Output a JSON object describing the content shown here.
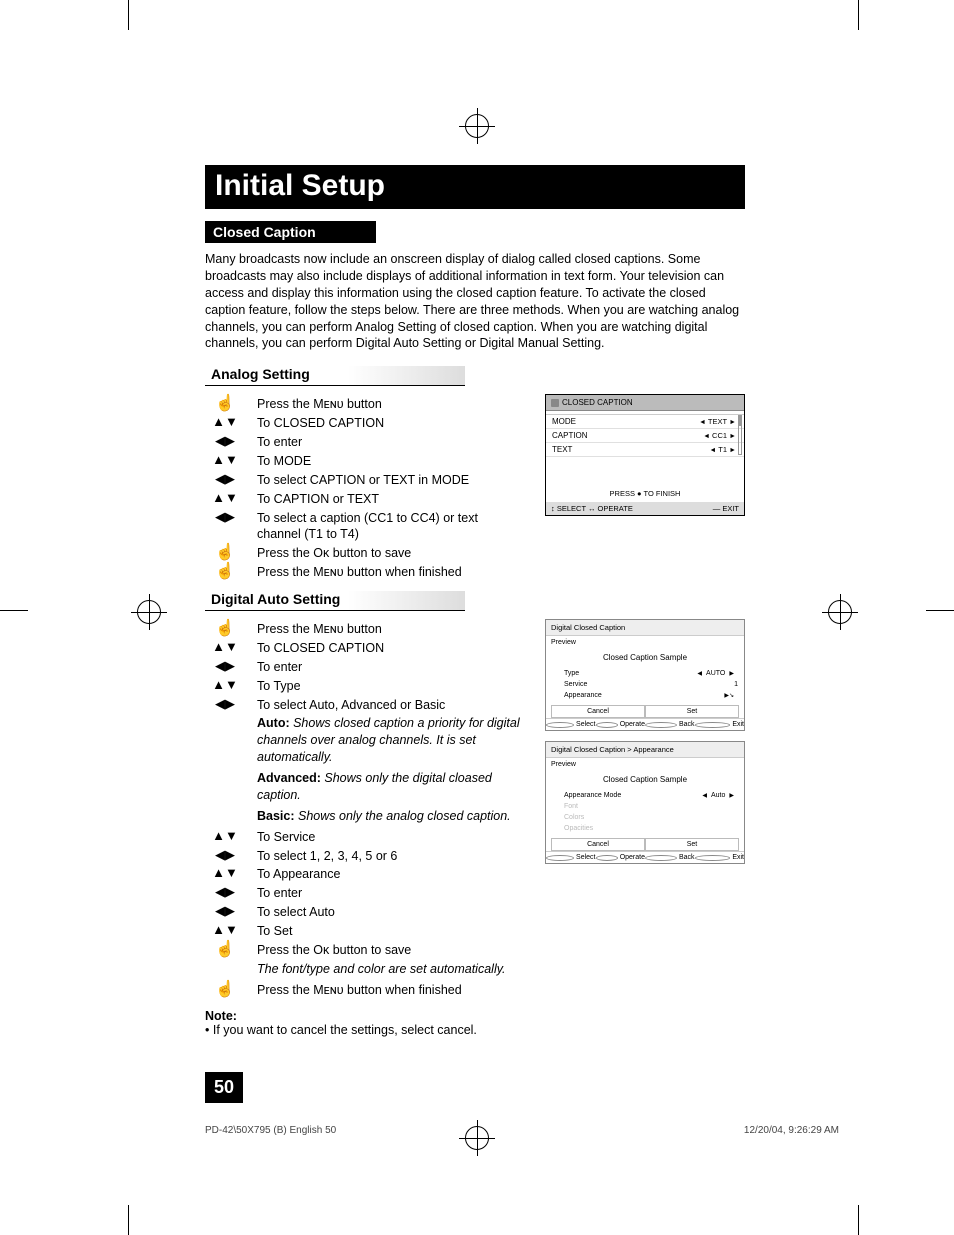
{
  "page_title": "Initial Setup",
  "section1": "Closed Caption",
  "intro": "Many broadcasts now include an onscreen display of dialog called closed captions. Some broadcasts may also include displays of additional information in text form. Your television can access and display this information using the closed caption feature. To activate the closed caption feature, follow the steps below.  There are three methods.  When you are watching analog channels, you can perform Analog Setting of closed caption.  When you are watching digital channels, you can perform Digital Auto Setting or Digital Manual Setting.",
  "analog_heading": "Analog Setting",
  "analog_steps": [
    {
      "icon": "hand",
      "text": "Press the Mᴇɴᴜ button"
    },
    {
      "icon": "ud",
      "text": "To CLOSED CAPTION"
    },
    {
      "icon": "lr",
      "text": "To enter"
    },
    {
      "icon": "ud",
      "text": "To MODE"
    },
    {
      "icon": "lr",
      "text": "To select CAPTION or TEXT in MODE"
    },
    {
      "icon": "ud",
      "text": "To CAPTION or TEXT"
    },
    {
      "icon": "lr",
      "text": "To select a caption (CC1 to CC4) or text channel (T1 to T4)"
    },
    {
      "icon": "hand",
      "text": "Press the Oᴋ button to save"
    },
    {
      "icon": "hand",
      "text": "Press the Mᴇɴᴜ button when finished"
    }
  ],
  "digital_heading": "Digital Auto Setting",
  "digital_steps_a": [
    {
      "icon": "hand",
      "text": "Press the Mᴇɴᴜ button"
    },
    {
      "icon": "ud",
      "text": "To CLOSED CAPTION"
    },
    {
      "icon": "lr",
      "text": "To enter"
    },
    {
      "icon": "ud",
      "text": "To Type"
    },
    {
      "icon": "lr",
      "text": "To select Auto, Advanced or Basic"
    }
  ],
  "digital_desc": [
    {
      "b": "Auto:",
      "t": "  Shows closed caption a priority for digital channels over analog channels.  It is set automatically."
    },
    {
      "b": "Advanced:",
      "t": "  Shows only the digital cloased caption."
    },
    {
      "b": "Basic:",
      "t": "  Shows only the analog closed caption."
    }
  ],
  "digital_steps_b": [
    {
      "icon": "ud",
      "text": "To Service"
    },
    {
      "icon": "lr",
      "text": "To select 1, 2, 3, 4, 5 or 6"
    },
    {
      "icon": "ud",
      "text": "To Appearance"
    },
    {
      "icon": "lr",
      "text": "To enter"
    },
    {
      "icon": "lr",
      "text": "To select Auto"
    },
    {
      "icon": "ud",
      "text": "To Set"
    },
    {
      "icon": "hand",
      "text": "Press the Oᴋ button to save"
    }
  ],
  "digital_tail": "The font/type and color are set automatically.",
  "digital_final": {
    "icon": "hand",
    "text": "Press the Mᴇɴᴜ button when finished"
  },
  "note_label": "Note:",
  "note_text": "If you want to cancel the settings, select cancel.",
  "page_number": "50",
  "footer_left": "PD-42\\50X795 (B) English   50",
  "footer_right": "12/20/04, 9:26:29 AM",
  "osd_cc": {
    "title": "CLOSED CAPTION",
    "rows": [
      {
        "k": "MODE",
        "v": "TEXT"
      },
      {
        "k": "CAPTION",
        "v": "CC1"
      },
      {
        "k": "TEXT",
        "v": "T1"
      }
    ],
    "hint": "PRESS ● TO FINISH",
    "footer_left": "SELECT ↔ OPERATE",
    "footer_right": "EXIT"
  },
  "osd_dcc1": {
    "title": "Digital Closed Caption",
    "preview": "Preview",
    "sample": "Closed Caption Sample",
    "rows": [
      {
        "k": "Type",
        "v": "AUTO",
        "arrows": true
      },
      {
        "k": "Service",
        "v": "1",
        "arrows": false
      },
      {
        "k": "Appearance",
        "v": "",
        "arrows": "right"
      }
    ],
    "btns": [
      "Cancel",
      "Set"
    ],
    "foot": [
      "Select",
      "Operate",
      "Back",
      "Exit"
    ]
  },
  "osd_dcc2": {
    "title": "Digital Closed Caption  >  Appearance",
    "preview": "Preview",
    "sample": "Closed Caption Sample",
    "rows": [
      {
        "k": "Appearance Mode",
        "v": "Auto",
        "arrows": true,
        "dim": false
      },
      {
        "k": "Font",
        "v": "",
        "arrows": false,
        "dim": true
      },
      {
        "k": "Colors",
        "v": "",
        "arrows": false,
        "dim": true
      },
      {
        "k": "Opacities",
        "v": "",
        "arrows": false,
        "dim": true
      }
    ],
    "btns": [
      "Cancel",
      "Set"
    ],
    "foot": [
      "Select",
      "Operate",
      "Back",
      "Exit"
    ]
  },
  "colors": {
    "black": "#000000",
    "white": "#ffffff",
    "grey_header": "#bbbbbb",
    "grey_dim": "#bbbbbb"
  }
}
